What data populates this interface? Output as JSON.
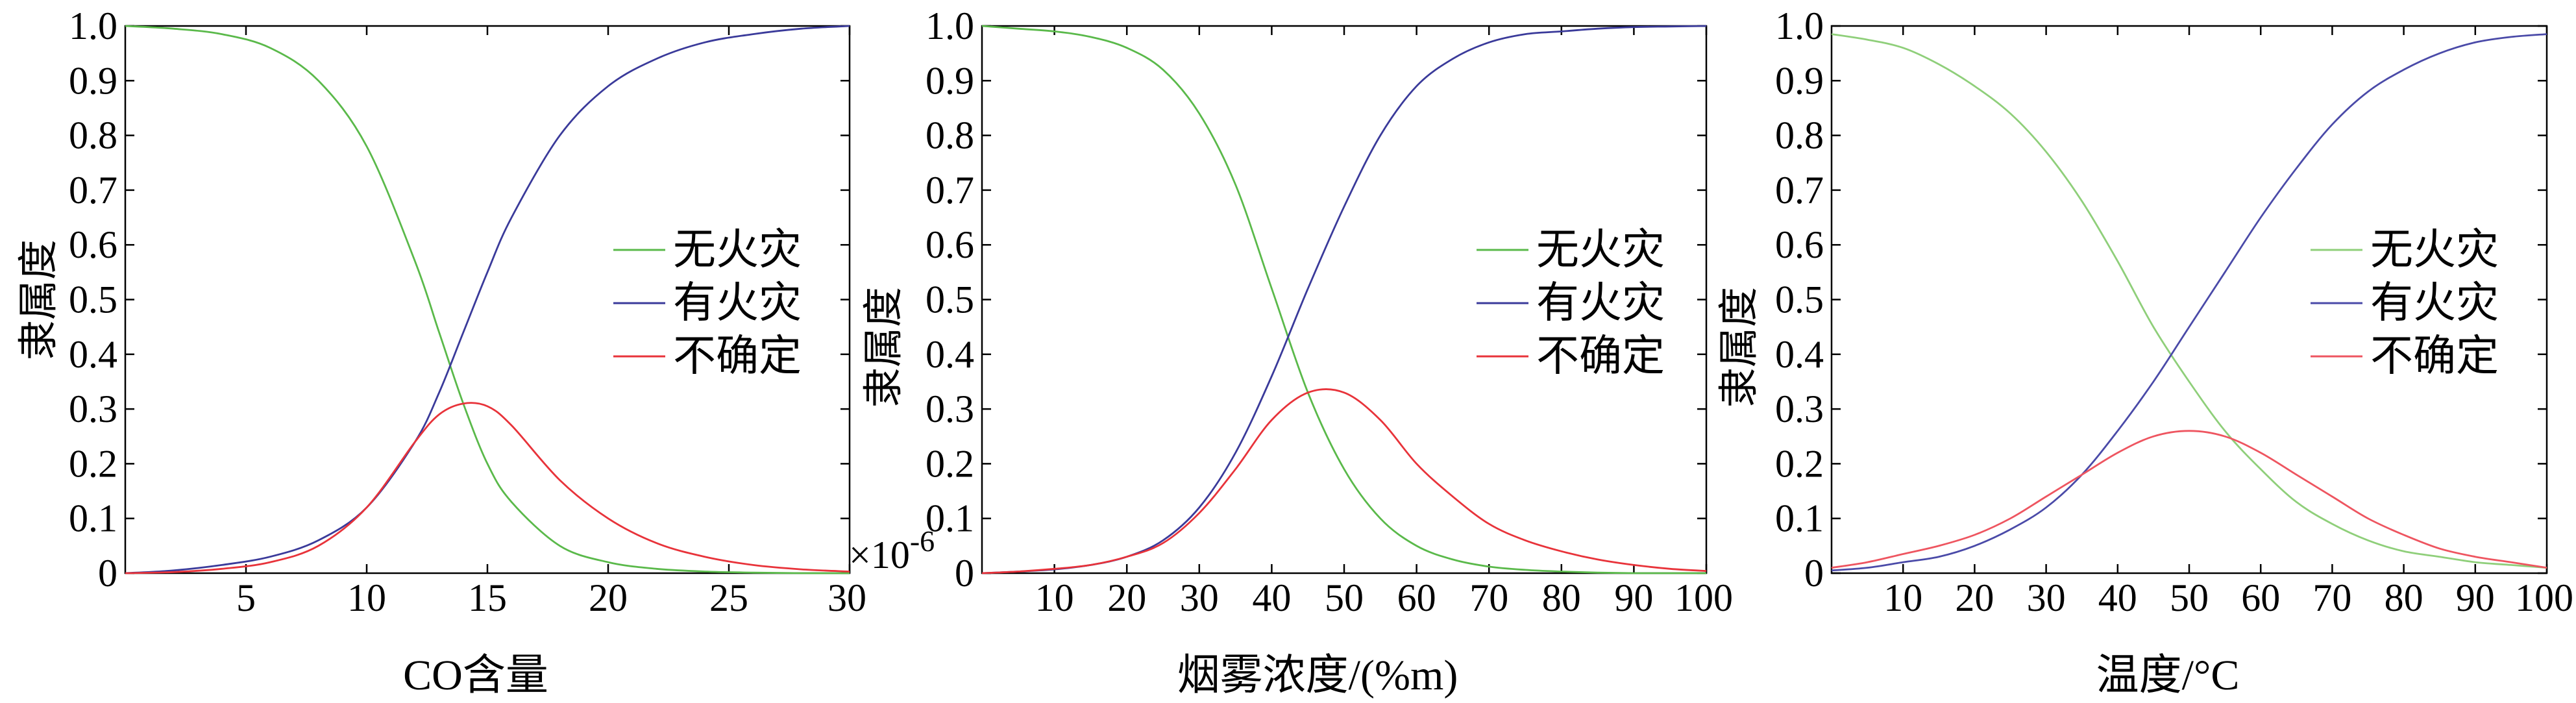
{
  "chart_data": [
    {
      "type": "line",
      "xlabel": "CO含量",
      "ylabel": "隶属度",
      "xlim": [
        0,
        30
      ],
      "ylim": [
        0,
        1
      ],
      "xticks": [
        5,
        10,
        15,
        20,
        25,
        30
      ],
      "xtick_labels": [
        "5",
        "10",
        "15",
        "20",
        "25",
        "30"
      ],
      "yticks": [
        0,
        0.1,
        0.2,
        0.3,
        0.4,
        0.5,
        0.6,
        0.7,
        0.8,
        0.9,
        1.0
      ],
      "ytick_labels": [
        "0",
        "0.1",
        "0.2",
        "0.3",
        "0.4",
        "0.5",
        "0.6",
        "0.7",
        "0.8",
        "0.9",
        "1.0"
      ],
      "axis_note": "",
      "legend_position": "right-center",
      "grid": false,
      "x": [
        0,
        2,
        4,
        6,
        8,
        10,
        12,
        13,
        14,
        15,
        16,
        18,
        20,
        22,
        24,
        26,
        28,
        30
      ],
      "series": [
        {
          "name": "无火灾",
          "color": "#5ab94a",
          "values": [
            1.0,
            0.995,
            0.985,
            0.96,
            0.9,
            0.78,
            0.57,
            0.44,
            0.31,
            0.2,
            0.13,
            0.05,
            0.02,
            0.008,
            0.003,
            0.001,
            0.0,
            0.0
          ]
        },
        {
          "name": "有火灾",
          "color": "#3a3a9a",
          "values": [
            0.0,
            0.005,
            0.015,
            0.03,
            0.06,
            0.12,
            0.24,
            0.33,
            0.44,
            0.55,
            0.65,
            0.8,
            0.89,
            0.94,
            0.97,
            0.985,
            0.995,
            1.0
          ]
        },
        {
          "name": "不确定",
          "color": "#e8333a",
          "values": [
            0.0,
            0.002,
            0.008,
            0.02,
            0.05,
            0.12,
            0.24,
            0.29,
            0.31,
            0.305,
            0.27,
            0.17,
            0.1,
            0.055,
            0.03,
            0.015,
            0.007,
            0.003
          ]
        }
      ]
    },
    {
      "type": "line",
      "xlabel": "烟雾浓度/(%m)",
      "ylabel": "隶属度",
      "xlim": [
        0,
        100
      ],
      "ylim": [
        0,
        1
      ],
      "xticks": [
        10,
        20,
        30,
        40,
        50,
        60,
        70,
        80,
        90,
        100
      ],
      "xtick_labels": [
        "10",
        "20",
        "30",
        "40",
        "50",
        "60",
        "70",
        "80",
        "90",
        "100"
      ],
      "yticks": [
        0,
        0.1,
        0.2,
        0.3,
        0.4,
        0.5,
        0.6,
        0.7,
        0.8,
        0.9,
        1.0
      ],
      "ytick_labels": [
        "0",
        "0.1",
        "0.2",
        "0.3",
        "0.4",
        "0.5",
        "0.6",
        "0.7",
        "0.8",
        "0.9",
        "1.0"
      ],
      "axis_note": "×10",
      "axis_note_exp": "-6",
      "legend_position": "right-center",
      "grid": false,
      "x": [
        0,
        5,
        10,
        15,
        20,
        25,
        30,
        35,
        40,
        45,
        50,
        55,
        60,
        65,
        70,
        75,
        80,
        85,
        90,
        95,
        100
      ],
      "series": [
        {
          "name": "无火灾",
          "color": "#5ab94a",
          "values": [
            1.0,
            0.995,
            0.99,
            0.98,
            0.96,
            0.92,
            0.84,
            0.71,
            0.52,
            0.33,
            0.19,
            0.1,
            0.05,
            0.025,
            0.012,
            0.006,
            0.003,
            0.001,
            0.0,
            0.0,
            0.0
          ]
        },
        {
          "name": "有火灾",
          "color": "#3a3a9a",
          "values": [
            0.0,
            0.003,
            0.007,
            0.015,
            0.03,
            0.06,
            0.12,
            0.22,
            0.36,
            0.52,
            0.67,
            0.8,
            0.89,
            0.94,
            0.97,
            0.985,
            0.99,
            0.995,
            0.998,
            0.999,
            1.0
          ]
        },
        {
          "name": "不确定",
          "color": "#e8333a",
          "values": [
            0.0,
            0.003,
            0.008,
            0.015,
            0.03,
            0.055,
            0.11,
            0.19,
            0.28,
            0.33,
            0.33,
            0.28,
            0.2,
            0.14,
            0.09,
            0.06,
            0.04,
            0.025,
            0.015,
            0.008,
            0.004
          ]
        }
      ]
    },
    {
      "type": "line",
      "xlabel": "温度/°C",
      "ylabel": "隶属度",
      "xlim": [
        0,
        100
      ],
      "ylim": [
        0,
        1
      ],
      "xticks": [
        10,
        20,
        30,
        40,
        50,
        60,
        70,
        80,
        90,
        100
      ],
      "xtick_labels": [
        "10",
        "20",
        "30",
        "40",
        "50",
        "60",
        "70",
        "80",
        "90",
        "100"
      ],
      "yticks": [
        0,
        0.1,
        0.2,
        0.3,
        0.4,
        0.5,
        0.6,
        0.7,
        0.8,
        0.9,
        1.0
      ],
      "ytick_labels": [
        "0",
        "0.1",
        "0.2",
        "0.3",
        "0.4",
        "0.5",
        "0.6",
        "0.7",
        "0.8",
        "0.9",
        "1.0"
      ],
      "axis_note": "",
      "legend_position": "right-center",
      "grid": false,
      "x": [
        0,
        5,
        10,
        15,
        20,
        25,
        30,
        35,
        40,
        45,
        50,
        55,
        60,
        65,
        70,
        75,
        80,
        85,
        90,
        95,
        100
      ],
      "series": [
        {
          "name": "无火灾",
          "color": "#8fcf7a",
          "values": [
            0.985,
            0.975,
            0.96,
            0.93,
            0.89,
            0.84,
            0.77,
            0.68,
            0.57,
            0.45,
            0.35,
            0.26,
            0.19,
            0.13,
            0.09,
            0.06,
            0.04,
            0.03,
            0.02,
            0.015,
            0.01
          ]
        },
        {
          "name": "有火灾",
          "color": "#4a4aa8",
          "values": [
            0.005,
            0.01,
            0.02,
            0.03,
            0.05,
            0.08,
            0.12,
            0.18,
            0.26,
            0.35,
            0.45,
            0.55,
            0.65,
            0.74,
            0.82,
            0.88,
            0.92,
            0.95,
            0.97,
            0.98,
            0.985
          ]
        },
        {
          "name": "不确定",
          "color": "#ee5560",
          "values": [
            0.01,
            0.02,
            0.035,
            0.05,
            0.07,
            0.1,
            0.14,
            0.18,
            0.22,
            0.25,
            0.26,
            0.25,
            0.22,
            0.18,
            0.14,
            0.1,
            0.07,
            0.045,
            0.03,
            0.02,
            0.01
          ]
        }
      ]
    }
  ]
}
